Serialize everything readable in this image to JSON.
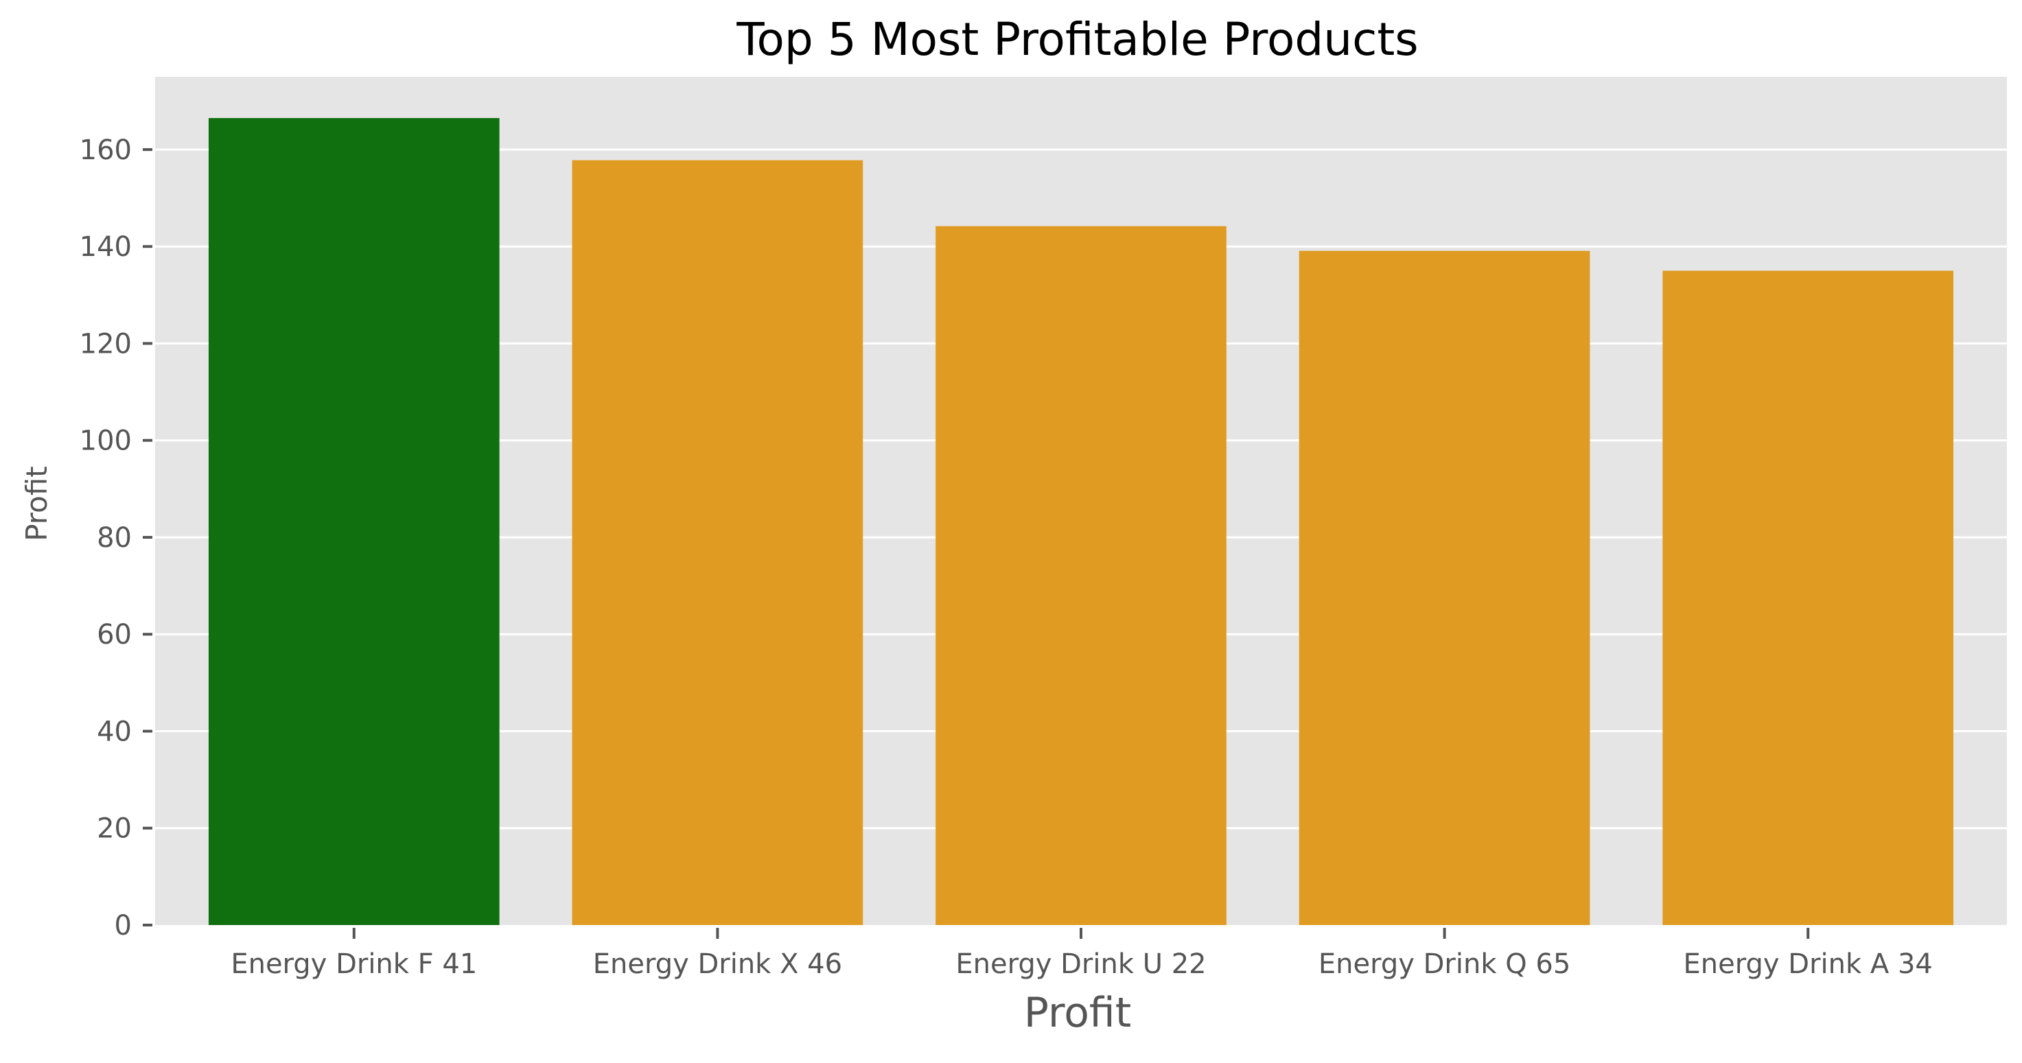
{
  "chart_data": {
    "type": "bar",
    "title": "Top 5 Most Profitable Products",
    "xlabel": "Profit",
    "ylabel": "Profit",
    "categories": [
      "Energy Drink F 41",
      "Energy Drink X 46",
      "Energy Drink U 22",
      "Energy Drink Q 65",
      "Energy Drink A 34"
    ],
    "values": [
      166.5,
      157.8,
      144.2,
      139.1,
      135.0
    ],
    "bar_colors": [
      "#107010",
      "#E09B22",
      "#E09B22",
      "#E09B22",
      "#E09B22"
    ],
    "ylim": [
      0,
      175
    ],
    "yticks": [
      0,
      20,
      40,
      60,
      80,
      100,
      120,
      140,
      160
    ],
    "grid": true,
    "legend": "none",
    "colors": {
      "plot_background": "#E5E5E5",
      "grid": "#FFFFFF",
      "tick_text": "#555555",
      "title_text": "#000000",
      "axis_label_text": "#555555"
    }
  }
}
